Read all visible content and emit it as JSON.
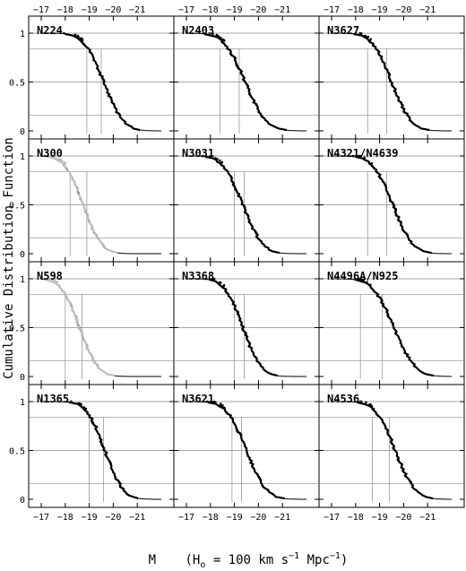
{
  "figure": {
    "ylabel": "Cumulative Distribution Function",
    "xlabel_prefix": "M",
    "xlabel_units": "(H",
    "xlabel_sub": "o",
    "xlabel_mid": " = 100 km s",
    "xlabel_sup1": "−1",
    "xlabel_mpc": " Mpc",
    "xlabel_sup2": "−1",
    "xlabel_close": ")"
  },
  "chart_data": {
    "type": "line",
    "layout": "4x3 grid of panels",
    "xlim": [
      -17,
      -22
    ],
    "x_direction": "reversed (brighter magnitudes to the left)",
    "ylim": [
      0,
      1
    ],
    "x_ticks": [
      -21,
      -20,
      -19,
      -18,
      -17
    ],
    "x_tick_labels": [
      "−21",
      "−20",
      "−19",
      "−18",
      "−17"
    ],
    "y_ticks": [
      0,
      0.5,
      1
    ],
    "y_tick_labels": [
      "0",
      "0.5",
      "1"
    ],
    "guide_levels": [
      0.16,
      0.5,
      0.84,
      1
    ],
    "panels": [
      {
        "name": "N224",
        "mu": -19.6,
        "sigma": 0.65,
        "median": -19.5,
        "turnover": -18.9,
        "gray": false
      },
      {
        "name": "N2403",
        "mu": -19.45,
        "sigma": 0.7,
        "median": -19.2,
        "turnover": -18.4,
        "gray": false
      },
      {
        "name": "N3627",
        "mu": -19.5,
        "sigma": 0.65,
        "median": -19.3,
        "turnover": -18.5,
        "gray": false
      },
      {
        "name": "N300",
        "mu": -18.75,
        "sigma": 0.6,
        "median": -18.9,
        "turnover": -18.2,
        "gray": true
      },
      {
        "name": "N3031",
        "mu": -19.35,
        "sigma": 0.65,
        "median": -19.4,
        "turnover": -19.0,
        "gray": false
      },
      {
        "name": "N4321/N4639",
        "mu": -19.55,
        "sigma": 0.65,
        "median": -19.3,
        "turnover": -18.5,
        "gray": false
      },
      {
        "name": "N598",
        "mu": -18.6,
        "sigma": 0.6,
        "median": -18.7,
        "turnover": -18.0,
        "gray": true
      },
      {
        "name": "N3368",
        "mu": -19.35,
        "sigma": 0.6,
        "median": -19.4,
        "turnover": -19.0,
        "gray": false
      },
      {
        "name": "N4496A/N925",
        "mu": -19.6,
        "sigma": 0.7,
        "median": -19.1,
        "turnover": -18.2,
        "gray": false
      },
      {
        "name": "N1365",
        "mu": -19.65,
        "sigma": 0.6,
        "median": -19.6,
        "turnover": -19.0,
        "gray": false
      },
      {
        "name": "N3621",
        "mu": -19.5,
        "sigma": 0.65,
        "median": -19.3,
        "turnover": -18.9,
        "gray": false
      },
      {
        "name": "N4536",
        "mu": -19.65,
        "sigma": 0.65,
        "median": -19.4,
        "turnover": -18.7,
        "gray": false
      }
    ]
  }
}
